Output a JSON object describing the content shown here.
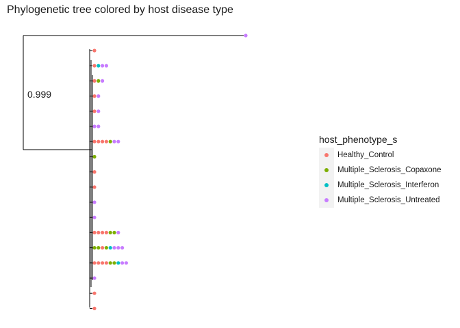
{
  "title": "Phylogenetic tree colored by host disease type",
  "node_label": "0.999",
  "legend": {
    "title": "host_phenotype_s",
    "items": [
      {
        "key": "healthy",
        "label": "Healthy_Control",
        "color": "#F8766D"
      },
      {
        "key": "copaxone",
        "label": "Multiple_Sclerosis_Copaxone",
        "color": "#7CAE00"
      },
      {
        "key": "interferon",
        "label": "Multiple_Sclerosis_Interferon",
        "color": "#00BFC4"
      },
      {
        "key": "untreated",
        "label": "Multiple_Sclerosis_Untreated",
        "color": "#C77CFF"
      }
    ]
  },
  "chart_data": {
    "type": "tree",
    "tips": [
      [
        "untreated"
      ],
      [
        "healthy"
      ],
      [
        "healthy",
        "interferon",
        "untreated",
        "untreated"
      ],
      [
        "healthy",
        "copaxone",
        "untreated"
      ],
      [
        "healthy",
        "untreated"
      ],
      [
        "healthy",
        "untreated"
      ],
      [
        "untreated",
        "untreated"
      ],
      [
        "healthy",
        "healthy",
        "healthy",
        "healthy",
        "copaxone",
        "untreated",
        "untreated"
      ],
      [
        "copaxone"
      ],
      [
        "healthy"
      ],
      [
        "healthy"
      ],
      [
        "untreated"
      ],
      [
        "untreated"
      ],
      [
        "healthy",
        "healthy",
        "healthy",
        "healthy",
        "copaxone",
        "copaxone",
        "untreated"
      ],
      [
        "copaxone",
        "copaxone",
        "healthy",
        "copaxone",
        "interferon",
        "untreated",
        "untreated",
        "untreated"
      ],
      [
        "healthy",
        "healthy",
        "healthy",
        "healthy",
        "copaxone",
        "copaxone",
        "interferon",
        "untreated",
        "untreated"
      ],
      [
        "untreated"
      ],
      [
        "healthy"
      ],
      [
        "healthy"
      ]
    ]
  }
}
